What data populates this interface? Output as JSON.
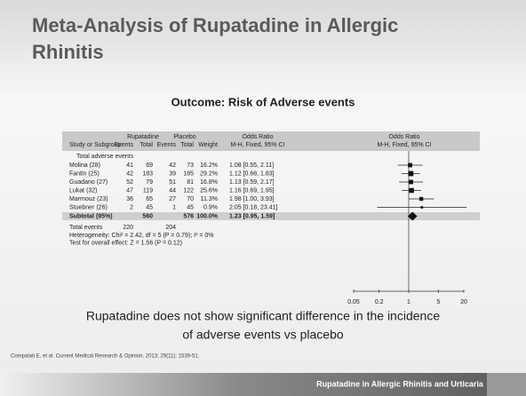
{
  "slide": {
    "title_lines": [
      "Meta-Analysis of Rupatadine in Allergic",
      "Rhinitis"
    ],
    "subtitle": "Outcome: Risk of Adverse events",
    "table": {
      "header_top": [
        "Rupatadine",
        "Placebo",
        "Odds Ratio",
        "Odds Ratio"
      ],
      "header": [
        "Study or Subgroup",
        "Events",
        "Total",
        "Events",
        "Total",
        "Weight",
        "M-H, Fixed, 95% CI",
        "M-H, Fixed, 95% CI"
      ],
      "group": "Total adverse events",
      "rows": [
        [
          "Molina (28)",
          "41",
          "69",
          "42",
          "73",
          "16.2%",
          "1.08 [0.55, 2.11]"
        ],
        [
          "Fantin (25)",
          "42",
          "183",
          "39",
          "185",
          "29.2%",
          "1.12 [0.68, 1.83]"
        ],
        [
          "Guadano (27)",
          "52",
          "79",
          "51",
          "81",
          "16.8%",
          "1.13 [0.59, 2.17]"
        ],
        [
          "Lukat (32)",
          "47",
          "119",
          "44",
          "122",
          "25.6%",
          "1.16 [0.69, 1.95]"
        ],
        [
          "Marmouz (23)",
          "36",
          "65",
          "27",
          "70",
          "11.3%",
          "1.98 [1.00, 3.93]"
        ],
        [
          "Stuebner (26)",
          "2",
          "45",
          "1",
          "45",
          "0.9%",
          "2.05 [0.18, 23.41]"
        ]
      ],
      "subtotal": [
        "Subtotal (95%)",
        "",
        "560",
        "",
        "576",
        "100.0%",
        "1.23 [0.95, 1.59]"
      ],
      "total_events": [
        "Total events",
        "220",
        "204"
      ],
      "notes": [
        "Heterogeneity: Chi² = 2.42, df = 5 (P = 0.79); I² = 0%",
        "Test for overall effect: Z = 1.56 (P = 0.12)"
      ],
      "axis_ticks": [
        0.05,
        0.2,
        1,
        5,
        20
      ],
      "log_scale": true
    },
    "conclusion_lines": [
      "Rupatadine does not show significant difference in the incidence",
      "of adverse events vs placebo"
    ],
    "citation": "Compalati E, et al. Current Medical Research & Opinion. 2013; 29(11): 1539-51.",
    "footer": "Rupatadine in Allergic Rhinitis and Urticaria"
  }
}
